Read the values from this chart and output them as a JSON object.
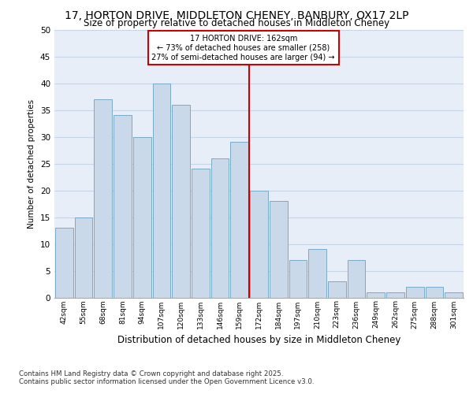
{
  "title_line1": "17, HORTON DRIVE, MIDDLETON CHENEY, BANBURY, OX17 2LP",
  "title_line2": "Size of property relative to detached houses in Middleton Cheney",
  "xlabel": "Distribution of detached houses by size in Middleton Cheney",
  "ylabel": "Number of detached properties",
  "categories": [
    "42sqm",
    "55sqm",
    "68sqm",
    "81sqm",
    "94sqm",
    "107sqm",
    "120sqm",
    "133sqm",
    "146sqm",
    "159sqm",
    "172sqm",
    "184sqm",
    "197sqm",
    "210sqm",
    "223sqm",
    "236sqm",
    "249sqm",
    "262sqm",
    "275sqm",
    "288sqm",
    "301sqm"
  ],
  "values": [
    13,
    15,
    37,
    34,
    30,
    40,
    36,
    24,
    26,
    29,
    20,
    18,
    7,
    9,
    3,
    7,
    1,
    1,
    2,
    2,
    1
  ],
  "bar_color": "#c9d9ea",
  "bar_edge_color": "#7aaac8",
  "annotation_text_line1": "17 HORTON DRIVE: 162sqm",
  "annotation_text_line2": "← 73% of detached houses are smaller (258)",
  "annotation_text_line3": "27% of semi-detached houses are larger (94) →",
  "annotation_box_color": "#ffffff",
  "annotation_border_color": "#cc0000",
  "vline_color": "#cc0000",
  "grid_color": "#c8d4e8",
  "background_color": "#e8eef8",
  "footnote_line1": "Contains HM Land Registry data © Crown copyright and database right 2025.",
  "footnote_line2": "Contains public sector information licensed under the Open Government Licence v3.0.",
  "ylim": [
    0,
    50
  ],
  "yticks": [
    0,
    5,
    10,
    15,
    20,
    25,
    30,
    35,
    40,
    45,
    50
  ],
  "vline_x": 9.5
}
